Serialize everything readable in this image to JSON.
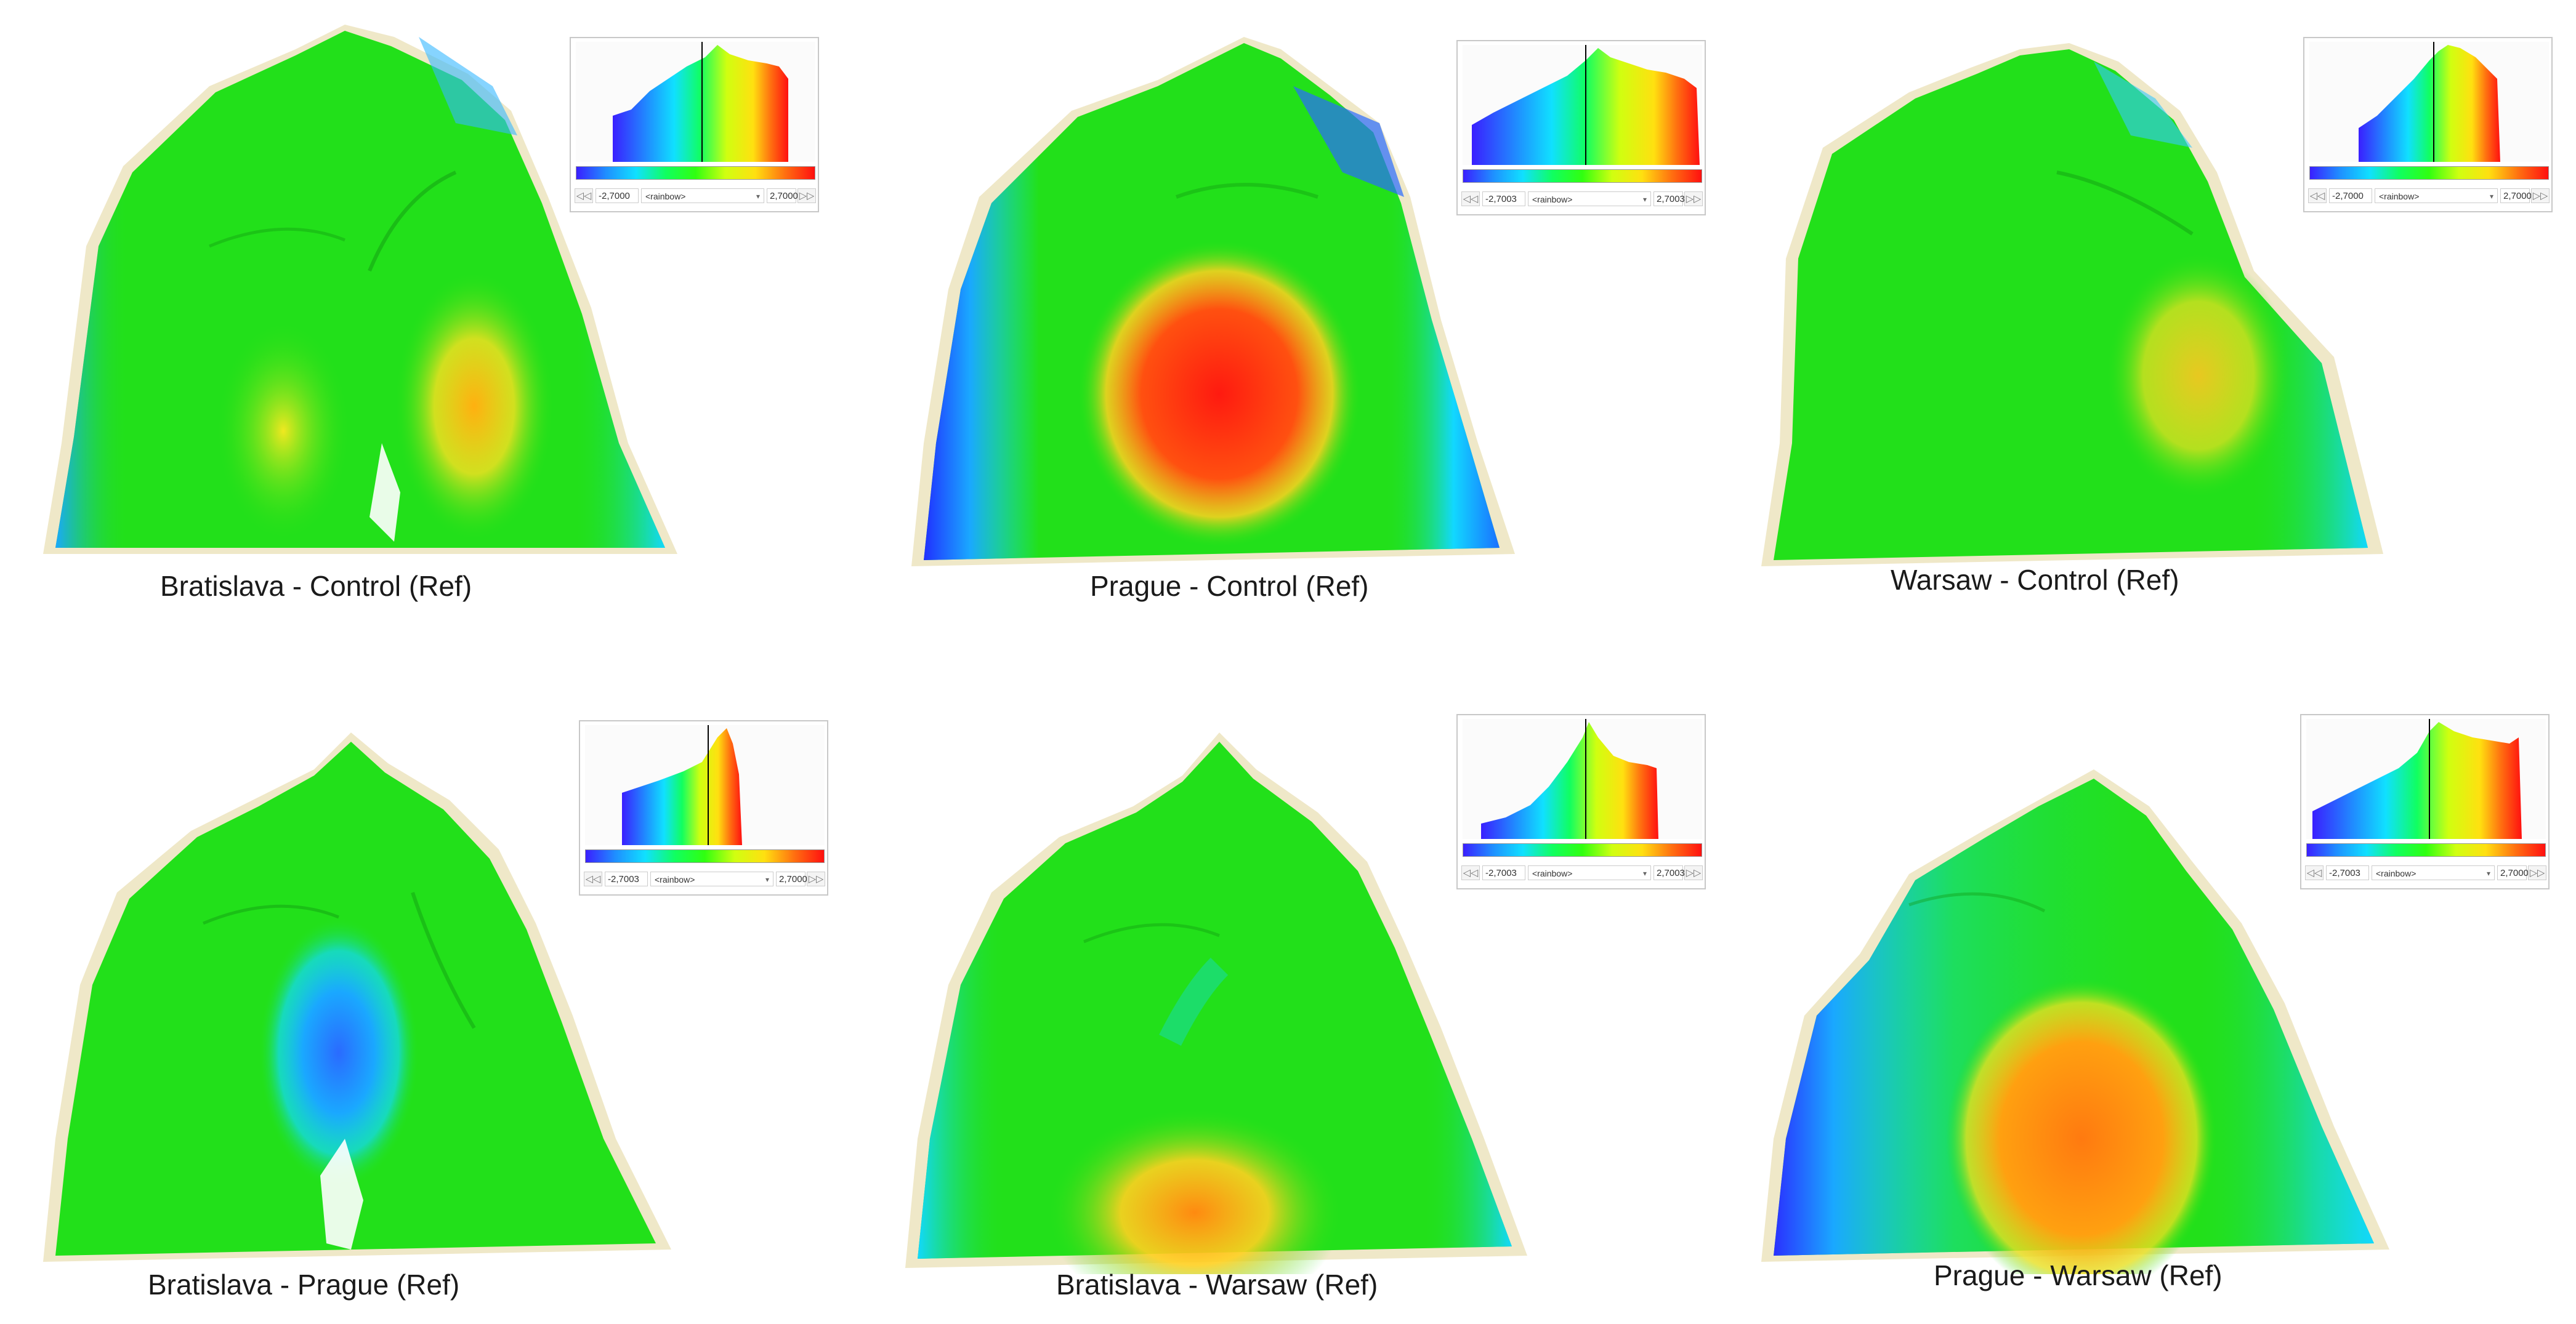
{
  "panels": [
    {
      "caption": "Bratislava - Control (Ref)",
      "cbar": {
        "min": "-2,7000",
        "max": "2,7000",
        "map": "<rainbow>"
      },
      "hotspot": "yellow-orange right-center"
    },
    {
      "caption": "Prague - Control (Ref)",
      "cbar": {
        "min": "-2,7003",
        "max": "2,7003",
        "map": "<rainbow>"
      },
      "hotspot": "red center"
    },
    {
      "caption": "Warsaw - Control (Ref)",
      "cbar": {
        "min": "-2,7000",
        "max": "2,7000",
        "map": "<rainbow>"
      },
      "hotspot": "yellow right-center"
    },
    {
      "caption": "Bratislava - Prague (Ref)",
      "cbar": {
        "min": "-2,7003",
        "max": "2,7000",
        "map": "<rainbow>"
      },
      "hotspot": "blue center"
    },
    {
      "caption": "Bratislava - Warsaw (Ref)",
      "cbar": {
        "min": "-2,7003",
        "max": "2,7003",
        "map": "<rainbow>"
      },
      "hotspot": "orange bottom"
    },
    {
      "caption": "Prague - Warsaw (Ref)",
      "cbar": {
        "min": "-2,7003",
        "max": "2,7000",
        "map": "<rainbow>"
      },
      "hotspot": "orange center"
    }
  ],
  "colors": {
    "green": "#22e01a",
    "blue": "#2a6bff",
    "cyan": "#12d8ff",
    "yellow": "#e8f020",
    "orange": "#ff8a10",
    "red": "#ff2a10",
    "base": "#efe8c8"
  },
  "icons": {
    "prev": "prev-arrows-icon",
    "next": "next-arrows-icon",
    "dropdown": "dropdown-arrow-icon"
  },
  "ui": {
    "prev_glyph": "◁◁",
    "next_glyph": "▷▷",
    "dropdown_glyph": "▾"
  }
}
